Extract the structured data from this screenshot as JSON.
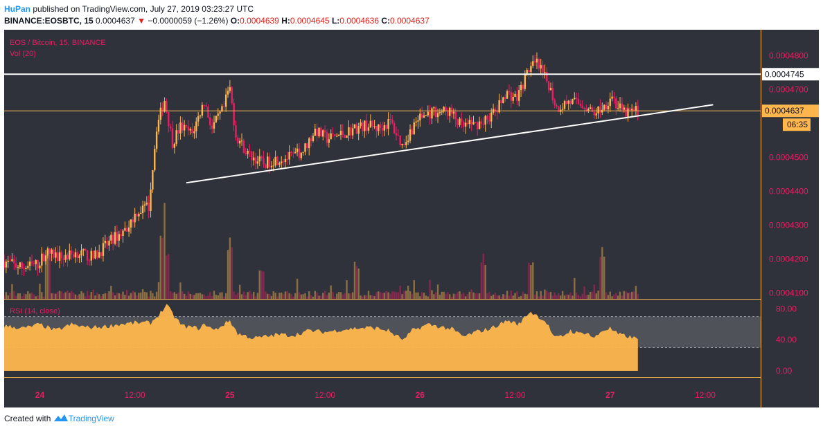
{
  "header": {
    "author": "HuPan",
    "published_text": "published on TradingView.com, July 27, 2019 03:23:27 UTC",
    "symbol_line": "BINANCE:EOSBTC, 15",
    "last_price": "0.0004637",
    "change_arrow": "▼",
    "change": "−0.0000059 (−1.26%)",
    "o_label": "O:",
    "o_value": "0.0004639",
    "h_label": "H:",
    "h_value": "0.0004645",
    "l_label": "L:",
    "l_value": "0.0004636",
    "c_label": "C:",
    "c_value": "0.0004637"
  },
  "legend": {
    "title": "EOS / Bitcoin, 15, BINANCE",
    "volume": "Vol (20)",
    "rsi": "RSI (14, close)"
  },
  "footer": {
    "created_with": "Created with",
    "brand": "TradingView"
  },
  "colors": {
    "background": "#2f323b",
    "up": "#ffb74d",
    "down": "#e91e63",
    "axis_text": "#e91e63",
    "border": "#ffb74d",
    "rsi_fill": "#ffb74d",
    "rsi_band": "#575a61",
    "trendline": "#ffffff",
    "resistance": "#ffffff",
    "price_line": "#ffb74d"
  },
  "chart_data": [
    {
      "type": "candlestick",
      "title": "EOS / Bitcoin, 15, BINANCE",
      "x_tick_labels": [
        "24",
        "12:00",
        "25",
        "12:00",
        "26",
        "12:00",
        "27",
        "12:00"
      ],
      "x_ticks_hours": [
        0,
        12,
        24,
        36,
        48,
        60,
        72,
        84
      ],
      "x_range_hours": [
        -4.5,
        91
      ],
      "y_ticks": [
        "0.0004800",
        "0.0004700",
        "0.0004500",
        "0.0004400",
        "0.0004300",
        "0.0004200",
        "0.0004100"
      ],
      "y_tick_values": [
        0.00048,
        0.00047,
        0.00045,
        0.00044,
        0.00043,
        0.00042,
        0.00041
      ],
      "ylim": [
        0.0004083,
        0.0004876
      ],
      "price_anchors": [
        [
          -4.5,
          0.0004195
        ],
        [
          -2,
          0.0004175
        ],
        [
          0,
          0.0004185
        ],
        [
          1,
          0.000422
        ],
        [
          3,
          0.0004205
        ],
        [
          5,
          0.000422
        ],
        [
          7,
          0.0004205
        ],
        [
          9.5,
          0.000426
        ],
        [
          11,
          0.0004285
        ],
        [
          12.5,
          0.000434
        ],
        [
          14,
          0.0004355
        ],
        [
          15,
          0.000459
        ],
        [
          16,
          0.000467
        ],
        [
          17,
          0.0004545
        ],
        [
          18,
          0.000459
        ],
        [
          19.5,
          0.000457
        ],
        [
          21,
          0.0004665
        ],
        [
          22,
          0.0004585
        ],
        [
          23.5,
          0.0004645
        ],
        [
          24.2,
          0.000471
        ],
        [
          25,
          0.0004565
        ],
        [
          26.5,
          0.000451
        ],
        [
          28.5,
          0.000448
        ],
        [
          30,
          0.0004495
        ],
        [
          32,
          0.00045
        ],
        [
          33.5,
          0.000452
        ],
        [
          35,
          0.000458
        ],
        [
          36.5,
          0.0004555
        ],
        [
          38,
          0.0004565
        ],
        [
          40,
          0.0004585
        ],
        [
          41.5,
          0.0004595
        ],
        [
          43,
          0.0004585
        ],
        [
          44.5,
          0.0004605
        ],
        [
          46,
          0.0004535
        ],
        [
          47,
          0.0004575
        ],
        [
          48,
          0.0004615
        ],
        [
          50,
          0.0004635
        ],
        [
          52,
          0.0004635
        ],
        [
          53.5,
          0.000459
        ],
        [
          55,
          0.0004595
        ],
        [
          56.5,
          0.000461
        ],
        [
          58,
          0.000464
        ],
        [
          59,
          0.000469
        ],
        [
          60.5,
          0.0004675
        ],
        [
          62,
          0.0004762
        ],
        [
          63,
          0.0004775
        ],
        [
          64.5,
          0.0004715
        ],
        [
          65.5,
          0.0004645
        ],
        [
          67,
          0.0004665
        ],
        [
          69,
          0.0004655
        ],
        [
          70,
          0.000463
        ],
        [
          71.5,
          0.000465
        ],
        [
          72.5,
          0.0004685
        ],
        [
          73,
          0.0004655
        ],
        [
          74,
          0.000463
        ],
        [
          75.5,
          0.0004637
        ]
      ],
      "resistance_value": 0.0004745,
      "resistance_label": "0.0004745",
      "last_value": 0.0004637,
      "last_label": "0.0004637",
      "countdown": "06:35",
      "trendline": [
        [
          18.5,
          0.0004425
        ],
        [
          85,
          0.0004655
        ]
      ],
      "grid": false
    },
    {
      "type": "bar",
      "title": "Vol (20)",
      "description": "volume histogram, spikes near hours 15-16, 24, 56, 62, 71"
    },
    {
      "type": "area",
      "title": "RSI (14, close)",
      "y_ticks": [
        "80.00",
        "40.00",
        "0.00"
      ],
      "y_tick_values": [
        80,
        40,
        0
      ],
      "ylim": [
        -8,
        92
      ],
      "band": [
        30,
        70
      ],
      "rsi_anchors": [
        [
          -4.5,
          58
        ],
        [
          -2,
          55
        ],
        [
          0,
          60
        ],
        [
          2,
          52
        ],
        [
          4,
          60
        ],
        [
          6,
          56
        ],
        [
          8,
          57
        ],
        [
          10,
          60
        ],
        [
          12,
          62
        ],
        [
          14,
          62
        ],
        [
          15,
          72
        ],
        [
          16,
          85
        ],
        [
          17,
          70
        ],
        [
          18,
          58
        ],
        [
          20,
          55
        ],
        [
          21,
          60
        ],
        [
          22,
          52
        ],
        [
          24,
          65
        ],
        [
          25,
          48
        ],
        [
          27,
          42
        ],
        [
          29,
          45
        ],
        [
          30,
          47
        ],
        [
          32,
          46
        ],
        [
          34,
          52
        ],
        [
          36,
          50
        ],
        [
          38,
          53
        ],
        [
          40,
          55
        ],
        [
          42,
          56
        ],
        [
          44,
          52
        ],
        [
          45,
          45
        ],
        [
          46,
          40
        ],
        [
          47,
          52
        ],
        [
          49,
          60
        ],
        [
          52,
          54
        ],
        [
          53.5,
          44
        ],
        [
          55,
          50
        ],
        [
          57,
          55
        ],
        [
          59,
          65
        ],
        [
          60.5,
          60
        ],
        [
          61.5,
          73
        ],
        [
          62,
          76
        ],
        [
          63,
          70
        ],
        [
          64,
          62
        ],
        [
          65,
          42
        ],
        [
          66,
          45
        ],
        [
          67,
          52
        ],
        [
          68,
          48
        ],
        [
          69,
          50
        ],
        [
          70,
          42
        ],
        [
          71,
          52
        ],
        [
          72,
          55
        ],
        [
          73,
          47
        ],
        [
          74,
          45
        ],
        [
          75.5,
          41
        ]
      ]
    }
  ]
}
